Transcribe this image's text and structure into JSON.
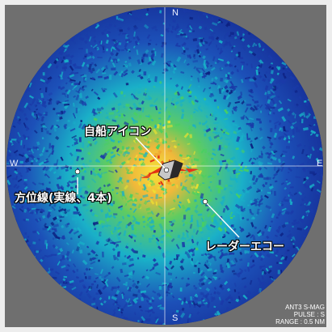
{
  "radar": {
    "cardinals": {
      "north": "N",
      "south": "S",
      "west": "W",
      "east": "E"
    },
    "colors": {
      "frame": "#6f6f6f",
      "echo_weak": "#1a3aa8",
      "echo_mid": "#18b0c8",
      "echo_med": "#48d060",
      "echo_strong": "#f0e030",
      "echo_peak": "#e02010",
      "own_ship": "#c8c8c8",
      "bearing_line": "#ffffff"
    }
  },
  "callouts": {
    "own_ship": "自船アイコン",
    "bearing_lines": "方位線(実線、4本)",
    "radar_echo": "レーダーエコー"
  },
  "status": {
    "line1": "ANT3 S-MAG",
    "line2": "PULSE : S",
    "line3": "RANGE : 0.5 NM"
  }
}
